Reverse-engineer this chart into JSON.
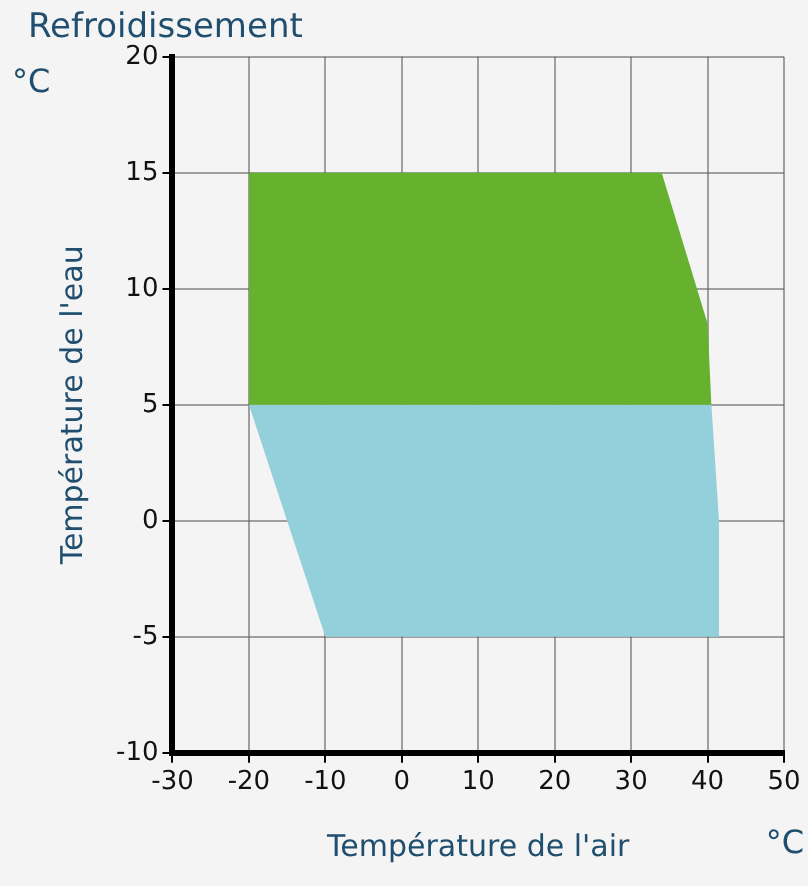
{
  "chart_data": {
    "type": "area",
    "title": "Refroidissement",
    "xlabel": "Température de l'air",
    "ylabel": "Température de l'eau",
    "annotations": [
      "°C",
      "°C"
    ],
    "series": [
      {
        "type": "area",
        "color": "#66b22e",
        "x": [
          -20,
          34,
          40,
          40.5,
          -20,
          -20
        ],
        "values": [
          15,
          15,
          8.5,
          5,
          5,
          15
        ]
      },
      {
        "type": "area",
        "color": "#94d0dc",
        "x": [
          -20,
          40.5,
          41.5,
          41.5,
          -10,
          -20
        ],
        "values": [
          5,
          5,
          0,
          -5,
          -5,
          5
        ]
      }
    ],
    "xlim": [
      -30,
      50
    ],
    "xticks": [
      -30,
      -20,
      -10,
      0,
      10,
      20,
      30,
      40,
      50
    ],
    "ylim": [
      -10,
      20
    ],
    "yticks": [
      -10,
      -5,
      0,
      5,
      10,
      15,
      20
    ],
    "grid": true,
    "legend": false
  }
}
